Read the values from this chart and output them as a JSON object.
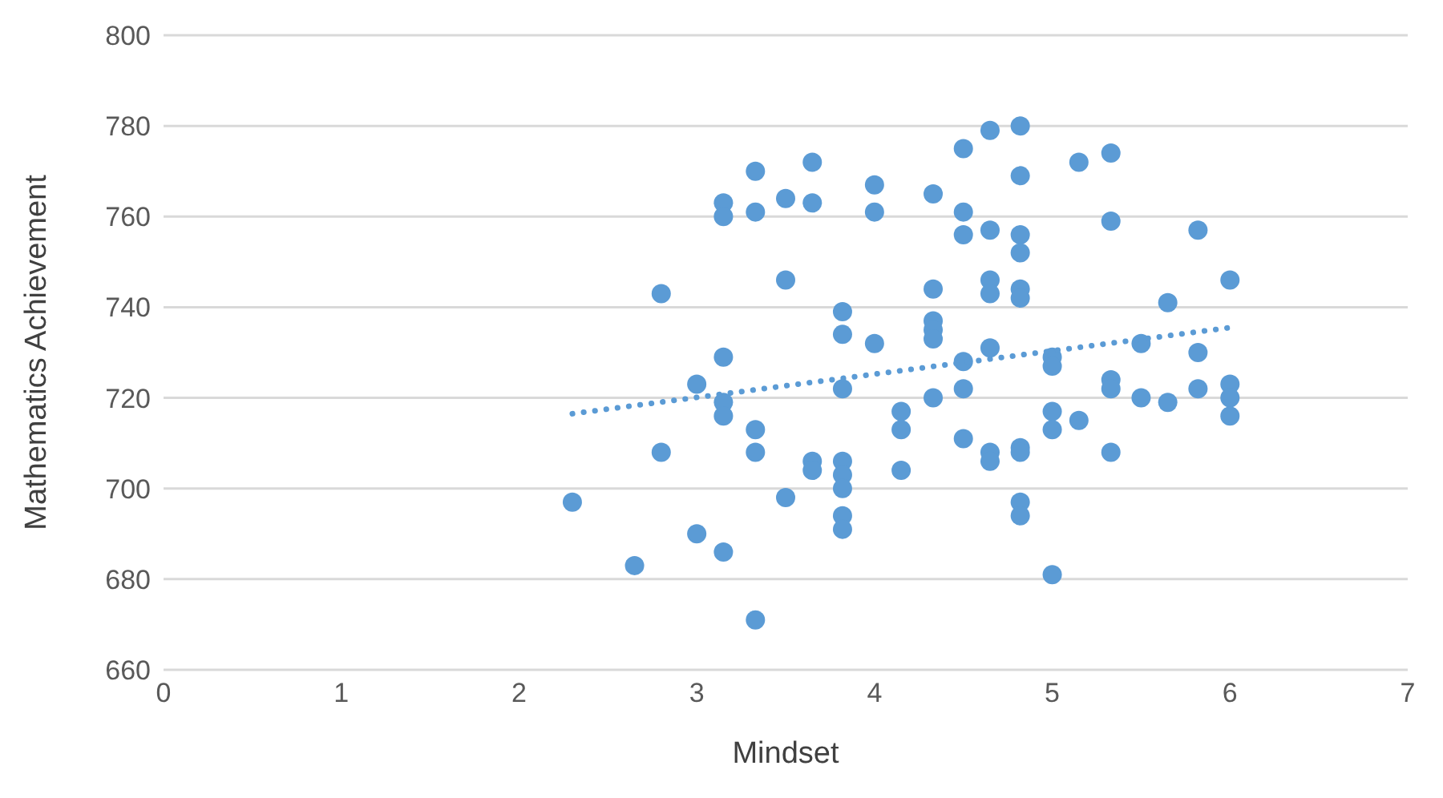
{
  "chart_data": {
    "type": "scatter",
    "xlabel": "Mindset",
    "ylabel": "Mathematics Achievement",
    "xlim": [
      0,
      7
    ],
    "xticks": [
      0,
      1,
      2,
      3,
      4,
      5,
      6,
      7
    ],
    "ylim": [
      660,
      800
    ],
    "yticks": [
      660,
      680,
      700,
      720,
      740,
      760,
      780,
      800
    ],
    "grid": "y",
    "marker": "circle",
    "series": [
      {
        "type": "scatter",
        "color": "#5b9bd5",
        "x": [
          2.3,
          2.65,
          2.8,
          2.8,
          3.0,
          3.0,
          3.15,
          3.15,
          3.15,
          3.15,
          3.15,
          3.15,
          3.33,
          3.33,
          3.33,
          3.33,
          3.33,
          3.5,
          3.5,
          3.5,
          3.65,
          3.65,
          3.65,
          3.65,
          3.82,
          3.82,
          3.82,
          3.82,
          3.82,
          3.82,
          3.82,
          3.82,
          4.0,
          4.0,
          4.0,
          4.15,
          4.15,
          4.15,
          4.33,
          4.33,
          4.33,
          4.33,
          4.33,
          4.33,
          4.5,
          4.5,
          4.5,
          4.5,
          4.5,
          4.5,
          4.65,
          4.65,
          4.65,
          4.65,
          4.65,
          4.65,
          4.65,
          4.82,
          4.82,
          4.82,
          4.82,
          4.82,
          4.82,
          4.82,
          4.82,
          4.82,
          4.82,
          5.0,
          5.0,
          5.0,
          5.0,
          5.0,
          5.15,
          5.15,
          5.33,
          5.33,
          5.33,
          5.33,
          5.33,
          5.5,
          5.5,
          5.65,
          5.65,
          5.82,
          5.82,
          5.82,
          6.0,
          6.0,
          6.0,
          6.0
        ],
        "values": [
          697,
          683,
          708,
          743,
          690,
          723,
          763,
          760,
          729,
          719,
          716,
          686,
          770,
          761,
          713,
          708,
          671,
          764,
          746,
          698,
          772,
          763,
          706,
          704,
          739,
          734,
          722,
          706,
          703,
          700,
          694,
          691,
          767,
          761,
          732,
          717,
          713,
          704,
          765,
          744,
          737,
          735,
          733,
          720,
          775,
          761,
          756,
          728,
          722,
          711,
          779,
          757,
          746,
          743,
          731,
          708,
          706,
          780,
          769,
          756,
          752,
          744,
          742,
          709,
          708,
          697,
          694,
          729,
          727,
          717,
          713,
          681,
          772,
          715,
          774,
          759,
          724,
          722,
          708,
          732,
          720,
          741,
          719,
          757,
          730,
          722,
          746,
          723,
          720,
          716
        ]
      },
      {
        "type": "line",
        "color": "#5b9bd5",
        "marker": "none",
        "line_style": "dotted",
        "x": [
          2.3,
          6.0
        ],
        "values": [
          716.5,
          735.5
        ]
      }
    ]
  }
}
